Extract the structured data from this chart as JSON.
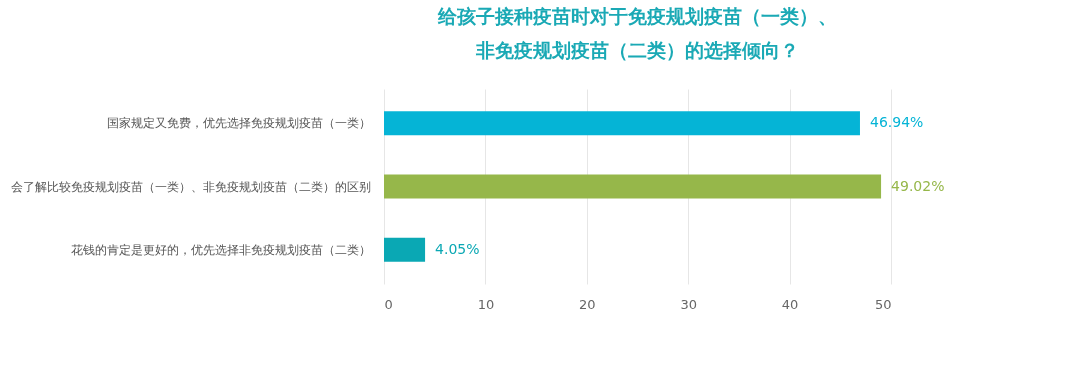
{
  "chart_data": {
    "type": "bar",
    "orientation": "horizontal",
    "title": [
      "给孩子接种疫苗时对于免疫规划疫苗（一类）、",
      "非免疫规划疫苗（二类）的选择倾向？"
    ],
    "categories": [
      "国家规定又免费，优先选择免疫规划疫苗（一类）",
      "会了解比较免疫规划疫苗（一类）、非免疫规划疫苗（二类）的区别",
      "花钱的肯定是更好的，优先选择非免疫规划疫苗（二类）"
    ],
    "values": [
      46.94,
      49.02,
      4.05
    ],
    "colors": [
      "#05b4d6",
      "#96b74a",
      "#0aa8b4"
    ],
    "value_labels": [
      "46.94%",
      "49.02%",
      "4.05%"
    ],
    "xlim": [
      0,
      50
    ],
    "xticks": [
      0,
      10,
      20,
      30,
      40,
      50
    ],
    "grid": "x"
  }
}
